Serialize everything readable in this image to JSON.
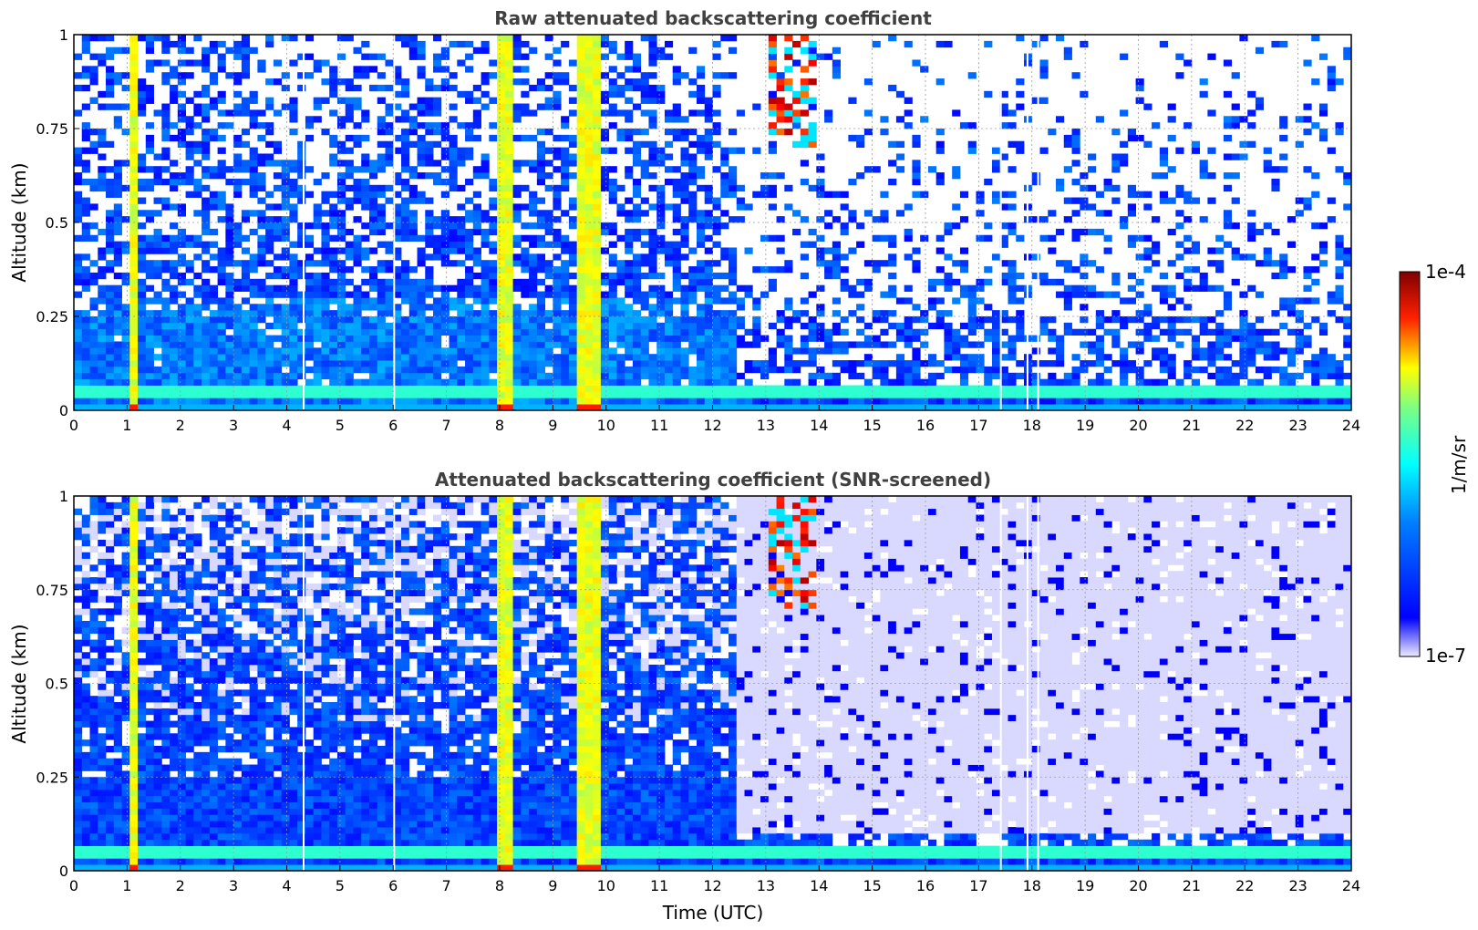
{
  "chart_data": [
    {
      "type": "heatmap",
      "title": "Raw attenuated backscattering coefficient",
      "xlabel": "",
      "ylabel": "Altitude (km)",
      "xlim": [
        0,
        24
      ],
      "ylim": [
        0,
        1
      ],
      "xticks": [
        "0",
        "1",
        "2",
        "3",
        "4",
        "5",
        "6",
        "7",
        "8",
        "9",
        "10",
        "11",
        "12",
        "13",
        "14",
        "15",
        "16",
        "17",
        "18",
        "19",
        "20",
        "21",
        "22",
        "23",
        "24"
      ],
      "yticks": [
        "0",
        "0.25",
        "0.5",
        "0.75",
        "1"
      ],
      "grid": true
    },
    {
      "type": "heatmap",
      "title": "Attenuated backscattering coefficient (SNR-screened)",
      "xlabel": "Time (UTC)",
      "ylabel": "Altitude (km)",
      "xlim": [
        0,
        24
      ],
      "ylim": [
        0,
        1
      ],
      "xticks": [
        "0",
        "1",
        "2",
        "3",
        "4",
        "5",
        "6",
        "7",
        "8",
        "9",
        "10",
        "11",
        "12",
        "13",
        "14",
        "15",
        "16",
        "17",
        "18",
        "19",
        "20",
        "21",
        "22",
        "23",
        "24"
      ],
      "yticks": [
        "0",
        "0.25",
        "0.5",
        "0.75",
        "1"
      ],
      "grid": true
    }
  ],
  "colorbar": {
    "label": "1/m/sr",
    "max_label": "1e-4",
    "min_label": "1e-7",
    "scale": "log",
    "colormap": "jet",
    "colors": [
      "#ecebff",
      "#0000ff",
      "#00ffff",
      "#ffff00",
      "#ff0000",
      "#7f0000"
    ]
  },
  "features": {
    "aerosol_layer_top_km": 0.25,
    "vertical_plume_times_utc": [
      1.15,
      8.1,
      9.7
    ],
    "thin_column_times_utc": [
      4.3,
      6.0,
      17.4,
      17.9,
      18.1
    ],
    "cloud_region_utc": [
      13.0,
      14.0
    ],
    "cloud_region_alt_km": [
      0.7,
      1.0
    ]
  }
}
